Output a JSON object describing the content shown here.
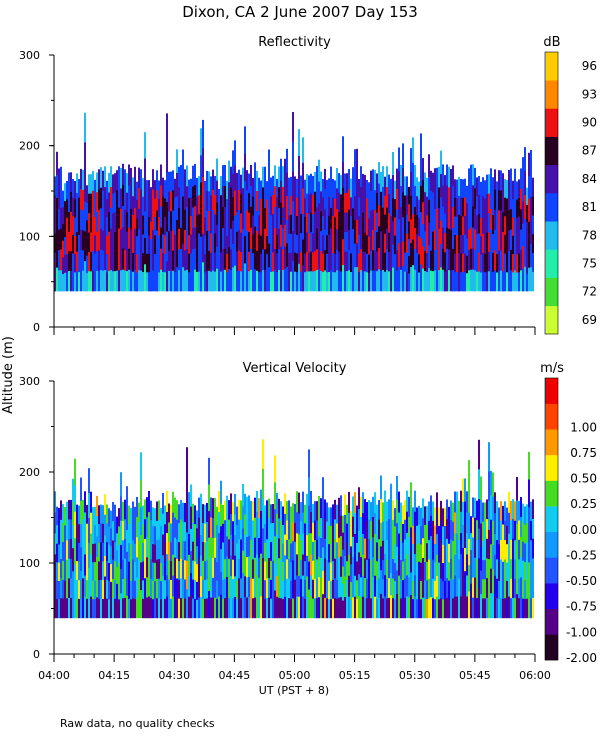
{
  "figure": {
    "title": "Dixon, CA   2 June 2007   Day 153",
    "footnote": "Raw data, no quality checks",
    "ylabel": "Altitude (m)",
    "xlabel": "UT  (PST + 8)"
  },
  "chart_data": [
    {
      "type": "heatmap",
      "title": "Reflectivity",
      "colorbar_unit": "dB",
      "ylim": [
        0,
        300
      ],
      "y_ticks": [
        0,
        100,
        200,
        300
      ],
      "x_range": [
        "04:00",
        "06:00"
      ],
      "x_ticks": [
        "04:00",
        "04:15",
        "04:30",
        "04:45",
        "05:00",
        "05:15",
        "05:30",
        "05:45",
        "06:00"
      ],
      "colorbar_levels": [
        {
          "label": "69",
          "color": "#ccff33"
        },
        {
          "label": "72",
          "color": "#44dd33"
        },
        {
          "label": "75",
          "color": "#22eeaa"
        },
        {
          "label": "78",
          "color": "#22bbee"
        },
        {
          "label": "81",
          "color": "#1144ff"
        },
        {
          "label": "84",
          "color": "#4411aa"
        },
        {
          "label": "87",
          "color": "#2a0022"
        },
        {
          "label": "90",
          "color": "#ee1111"
        },
        {
          "label": "93",
          "color": "#ff8800"
        },
        {
          "label": "96",
          "color": "#ffcc00"
        }
      ],
      "data_extent_m": {
        "bottom": 40,
        "typical_top": 180,
        "max_top": 240
      }
    },
    {
      "type": "heatmap",
      "title": "Vertical Velocity",
      "colorbar_unit": "m/s",
      "ylim": [
        0,
        300
      ],
      "y_ticks": [
        0,
        100,
        200,
        300
      ],
      "x_range": [
        "04:00",
        "06:00"
      ],
      "x_ticks": [
        "04:00",
        "04:15",
        "04:30",
        "04:45",
        "05:00",
        "05:15",
        "05:30",
        "05:45",
        "06:00"
      ],
      "colorbar_levels": [
        {
          "label": "-2.00",
          "color": "#220022"
        },
        {
          "label": "-1.00",
          "color": "#550088"
        },
        {
          "label": "-0.75",
          "color": "#2200ee"
        },
        {
          "label": "-0.50",
          "color": "#2255ff"
        },
        {
          "label": "-0.25",
          "color": "#1199ff"
        },
        {
          "label": "0.00",
          "color": "#11ccee"
        },
        {
          "label": "0.25",
          "color": "#44dd22"
        },
        {
          "label": "0.50",
          "color": "#ffee00"
        },
        {
          "label": "0.75",
          "color": "#ff9900"
        },
        {
          "label": "1.00",
          "color": "#ff4400"
        },
        {
          "label": "",
          "color": "#ee0000"
        }
      ],
      "data_extent_m": {
        "bottom": 40,
        "typical_top": 180,
        "max_top": 240
      }
    }
  ]
}
